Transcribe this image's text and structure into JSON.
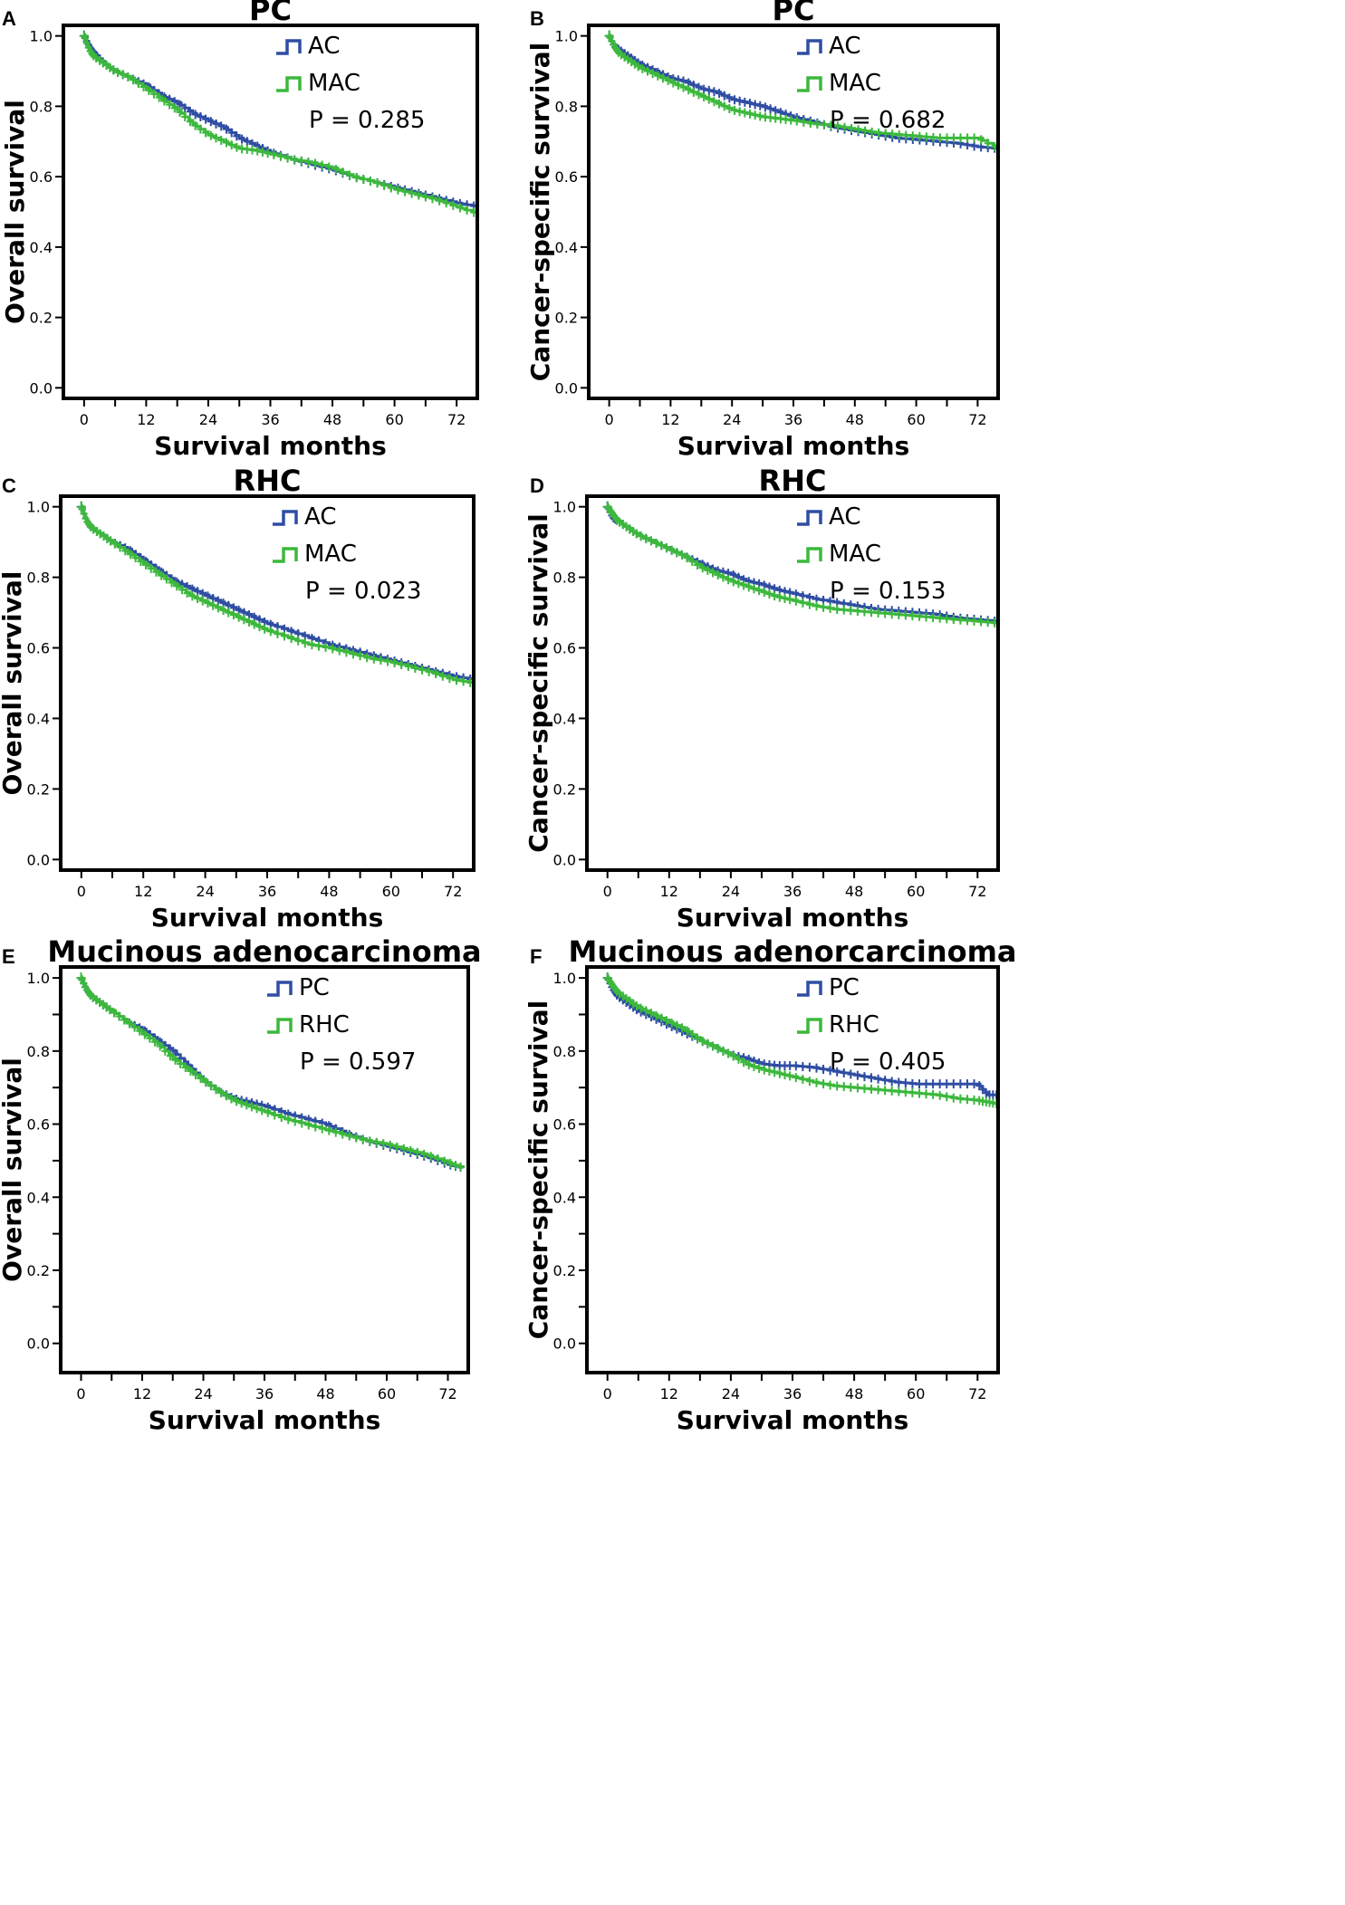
{
  "figure_description": "Six Kaplan-Meier survival panels",
  "colors": {
    "blue": "#2f4da3",
    "green": "#3cb83c",
    "axis": "#000000"
  },
  "chart_data": [
    {
      "type": "line",
      "panel_letter": "A",
      "title": "PC",
      "xlabel": "Survival months",
      "ylabel": "Overall survival",
      "xticks": [
        "0",
        "12",
        "24",
        "36",
        "48",
        "60",
        "72"
      ],
      "yticks": [
        "0.0",
        "0.2",
        "0.4",
        "0.6",
        "0.8",
        "1.0"
      ],
      "xlim": [
        -4,
        76
      ],
      "ylim": [
        -0.03,
        1.03
      ],
      "pvalue": "P = 0.285",
      "series": [
        {
          "name": "AC",
          "color": "#2f4da3",
          "x": [
            0,
            1,
            2,
            4,
            6,
            9,
            12,
            15,
            18,
            21,
            24,
            27,
            30,
            33,
            36,
            40,
            44,
            48,
            52,
            56,
            60,
            64,
            68,
            72,
            76
          ],
          "y": [
            1.0,
            0.97,
            0.95,
            0.92,
            0.9,
            0.88,
            0.86,
            0.83,
            0.81,
            0.78,
            0.76,
            0.74,
            0.71,
            0.69,
            0.67,
            0.65,
            0.635,
            0.62,
            0.6,
            0.585,
            0.57,
            0.555,
            0.54,
            0.525,
            0.515
          ]
        },
        {
          "name": "MAC",
          "color": "#3cb83c",
          "x": [
            0,
            1,
            2,
            4,
            6,
            9,
            12,
            15,
            18,
            21,
            24,
            27,
            30,
            33,
            36,
            40,
            44,
            48,
            52,
            56,
            60,
            64,
            68,
            72,
            76
          ],
          "y": [
            1.0,
            0.96,
            0.94,
            0.92,
            0.9,
            0.88,
            0.85,
            0.82,
            0.79,
            0.75,
            0.72,
            0.7,
            0.68,
            0.675,
            0.665,
            0.65,
            0.64,
            0.625,
            0.6,
            0.585,
            0.565,
            0.55,
            0.535,
            0.515,
            0.495
          ]
        }
      ]
    },
    {
      "type": "line",
      "panel_letter": "B",
      "title": "PC",
      "xlabel": "Survival months",
      "ylabel": "Cancer-specific survival",
      "xticks": [
        "0",
        "12",
        "24",
        "36",
        "48",
        "60",
        "72"
      ],
      "yticks": [
        "0.0",
        "0.2",
        "0.4",
        "0.6",
        "0.8",
        "1.0"
      ],
      "xlim": [
        -4,
        76
      ],
      "ylim": [
        -0.03,
        1.03
      ],
      "pvalue": "P = 0.682",
      "series": [
        {
          "name": "AC",
          "color": "#2f4da3",
          "x": [
            0,
            1,
            2,
            4,
            6,
            9,
            12,
            15,
            18,
            21,
            24,
            27,
            30,
            33,
            36,
            40,
            44,
            48,
            52,
            56,
            60,
            64,
            68,
            72,
            76
          ],
          "y": [
            1.0,
            0.97,
            0.96,
            0.94,
            0.92,
            0.9,
            0.88,
            0.87,
            0.85,
            0.84,
            0.82,
            0.81,
            0.8,
            0.785,
            0.77,
            0.755,
            0.74,
            0.73,
            0.72,
            0.71,
            0.705,
            0.7,
            0.695,
            0.685,
            0.68
          ]
        },
        {
          "name": "MAC",
          "color": "#3cb83c",
          "x": [
            0,
            1,
            2,
            4,
            6,
            9,
            12,
            15,
            18,
            21,
            24,
            27,
            30,
            33,
            36,
            40,
            44,
            48,
            52,
            56,
            60,
            64,
            68,
            72,
            76
          ],
          "y": [
            1.0,
            0.97,
            0.95,
            0.93,
            0.91,
            0.89,
            0.87,
            0.85,
            0.83,
            0.81,
            0.79,
            0.78,
            0.77,
            0.765,
            0.76,
            0.75,
            0.745,
            0.735,
            0.725,
            0.72,
            0.715,
            0.71,
            0.71,
            0.71,
            0.68
          ]
        }
      ]
    },
    {
      "type": "line",
      "panel_letter": "C",
      "title": "RHC",
      "xlabel": "Survival months",
      "ylabel": "Overall survival",
      "xticks": [
        "0",
        "12",
        "24",
        "36",
        "48",
        "60",
        "72"
      ],
      "yticks": [
        "0.0",
        "0.2",
        "0.4",
        "0.6",
        "0.8",
        "1.0"
      ],
      "xlim": [
        -4,
        76
      ],
      "ylim": [
        -0.03,
        1.03
      ],
      "pvalue": "P = 0.023",
      "series": [
        {
          "name": "AC",
          "color": "#2f4da3",
          "x": [
            0,
            1,
            2,
            4,
            6,
            9,
            12,
            15,
            18,
            21,
            24,
            27,
            30,
            33,
            36,
            40,
            44,
            48,
            52,
            56,
            60,
            64,
            68,
            72,
            76
          ],
          "y": [
            1.0,
            0.96,
            0.94,
            0.92,
            0.9,
            0.88,
            0.85,
            0.82,
            0.79,
            0.77,
            0.75,
            0.73,
            0.71,
            0.69,
            0.67,
            0.65,
            0.63,
            0.61,
            0.595,
            0.58,
            0.565,
            0.55,
            0.535,
            0.52,
            0.51
          ]
        },
        {
          "name": "MAC",
          "color": "#3cb83c",
          "x": [
            0,
            1,
            2,
            4,
            6,
            9,
            12,
            15,
            18,
            21,
            24,
            27,
            30,
            33,
            36,
            40,
            44,
            48,
            52,
            56,
            60,
            64,
            68,
            72,
            76
          ],
          "y": [
            1.0,
            0.96,
            0.94,
            0.92,
            0.9,
            0.87,
            0.84,
            0.81,
            0.78,
            0.75,
            0.73,
            0.71,
            0.69,
            0.67,
            0.65,
            0.63,
            0.61,
            0.6,
            0.585,
            0.57,
            0.56,
            0.545,
            0.53,
            0.51,
            0.5
          ]
        }
      ]
    },
    {
      "type": "line",
      "panel_letter": "D",
      "title": "RHC",
      "xlabel": "Survival months",
      "ylabel": "Cancer-specific survival",
      "xticks": [
        "0",
        "12",
        "24",
        "36",
        "48",
        "60",
        "72"
      ],
      "yticks": [
        "0.0",
        "0.2",
        "0.4",
        "0.6",
        "0.8",
        "1.0"
      ],
      "xlim": [
        -4,
        76
      ],
      "ylim": [
        -0.03,
        1.03
      ],
      "pvalue": "P = 0.153",
      "series": [
        {
          "name": "AC",
          "color": "#2f4da3",
          "x": [
            0,
            1,
            2,
            4,
            6,
            9,
            12,
            15,
            18,
            21,
            24,
            27,
            30,
            33,
            36,
            40,
            44,
            48,
            52,
            56,
            60,
            64,
            68,
            72,
            76
          ],
          "y": [
            1.0,
            0.97,
            0.96,
            0.94,
            0.92,
            0.9,
            0.88,
            0.86,
            0.84,
            0.82,
            0.81,
            0.79,
            0.78,
            0.765,
            0.755,
            0.74,
            0.73,
            0.72,
            0.71,
            0.705,
            0.7,
            0.695,
            0.685,
            0.68,
            0.675
          ]
        },
        {
          "name": "MAC",
          "color": "#3cb83c",
          "x": [
            0,
            1,
            2,
            4,
            6,
            9,
            12,
            15,
            18,
            21,
            24,
            27,
            30,
            33,
            36,
            40,
            44,
            48,
            52,
            56,
            60,
            64,
            68,
            72,
            76
          ],
          "y": [
            1.0,
            0.98,
            0.96,
            0.94,
            0.92,
            0.9,
            0.88,
            0.86,
            0.83,
            0.81,
            0.79,
            0.775,
            0.76,
            0.745,
            0.735,
            0.72,
            0.71,
            0.705,
            0.7,
            0.695,
            0.69,
            0.685,
            0.68,
            0.675,
            0.67
          ]
        }
      ]
    },
    {
      "type": "line",
      "panel_letter": "E",
      "title": "Mucinous adenocarcinoma",
      "xlabel": "Survival months",
      "ylabel": "Overall survival",
      "xticks": [
        "0",
        "12",
        "24",
        "36",
        "48",
        "60",
        "72"
      ],
      "yticks": [
        "0.0",
        "0.2",
        "0.4",
        "0.6",
        "0.8",
        "1.0"
      ],
      "xlim": [
        -4,
        76
      ],
      "ylim": [
        -0.08,
        1.03
      ],
      "pvalue": "P = 0.597",
      "series": [
        {
          "name": "PC",
          "color": "#2f4da3",
          "x": [
            0,
            1,
            2,
            4,
            6,
            9,
            12,
            15,
            18,
            21,
            24,
            27,
            30,
            33,
            36,
            40,
            44,
            48,
            52,
            56,
            60,
            64,
            68,
            72,
            75
          ],
          "y": [
            1.0,
            0.97,
            0.95,
            0.93,
            0.91,
            0.88,
            0.86,
            0.83,
            0.8,
            0.76,
            0.72,
            0.69,
            0.67,
            0.66,
            0.65,
            0.63,
            0.615,
            0.6,
            0.575,
            0.555,
            0.54,
            0.525,
            0.51,
            0.49,
            0.48
          ]
        },
        {
          "name": "RHC",
          "color": "#3cb83c",
          "x": [
            0,
            1,
            2,
            4,
            6,
            9,
            12,
            15,
            18,
            21,
            24,
            27,
            30,
            33,
            36,
            40,
            44,
            48,
            52,
            56,
            60,
            64,
            68,
            72,
            75
          ],
          "y": [
            1.0,
            0.97,
            0.95,
            0.93,
            0.91,
            0.88,
            0.85,
            0.82,
            0.78,
            0.75,
            0.72,
            0.69,
            0.665,
            0.65,
            0.635,
            0.615,
            0.6,
            0.585,
            0.57,
            0.555,
            0.545,
            0.53,
            0.515,
            0.495,
            0.48
          ]
        }
      ]
    },
    {
      "type": "line",
      "panel_letter": "F",
      "title": "Mucinous adenorcarcinoma",
      "xlabel": "Survival months",
      "ylabel": "Cancer-specific survival",
      "xticks": [
        "0",
        "12",
        "24",
        "36",
        "48",
        "60",
        "72"
      ],
      "yticks": [
        "0.0",
        "0.2",
        "0.4",
        "0.6",
        "0.8",
        "1.0"
      ],
      "xlim": [
        -4,
        76
      ],
      "ylim": [
        -0.08,
        1.03
      ],
      "pvalue": "P = 0.405",
      "series": [
        {
          "name": "PC",
          "color": "#2f4da3",
          "x": [
            0,
            1,
            2,
            4,
            6,
            9,
            12,
            15,
            18,
            21,
            24,
            27,
            30,
            33,
            36,
            40,
            44,
            48,
            52,
            56,
            60,
            64,
            68,
            72,
            74,
            76
          ],
          "y": [
            1.0,
            0.97,
            0.95,
            0.93,
            0.91,
            0.89,
            0.87,
            0.85,
            0.83,
            0.81,
            0.79,
            0.78,
            0.765,
            0.76,
            0.76,
            0.755,
            0.745,
            0.735,
            0.725,
            0.715,
            0.71,
            0.71,
            0.71,
            0.71,
            0.68,
            0.68
          ]
        },
        {
          "name": "RHC",
          "color": "#3cb83c",
          "x": [
            0,
            1,
            2,
            4,
            6,
            9,
            12,
            15,
            18,
            21,
            24,
            27,
            30,
            33,
            36,
            40,
            44,
            48,
            52,
            56,
            60,
            64,
            68,
            72,
            74,
            76
          ],
          "y": [
            1.0,
            0.98,
            0.96,
            0.94,
            0.92,
            0.9,
            0.88,
            0.86,
            0.83,
            0.81,
            0.79,
            0.765,
            0.75,
            0.74,
            0.73,
            0.715,
            0.705,
            0.7,
            0.695,
            0.69,
            0.685,
            0.68,
            0.67,
            0.665,
            0.66,
            0.655
          ]
        }
      ]
    }
  ]
}
